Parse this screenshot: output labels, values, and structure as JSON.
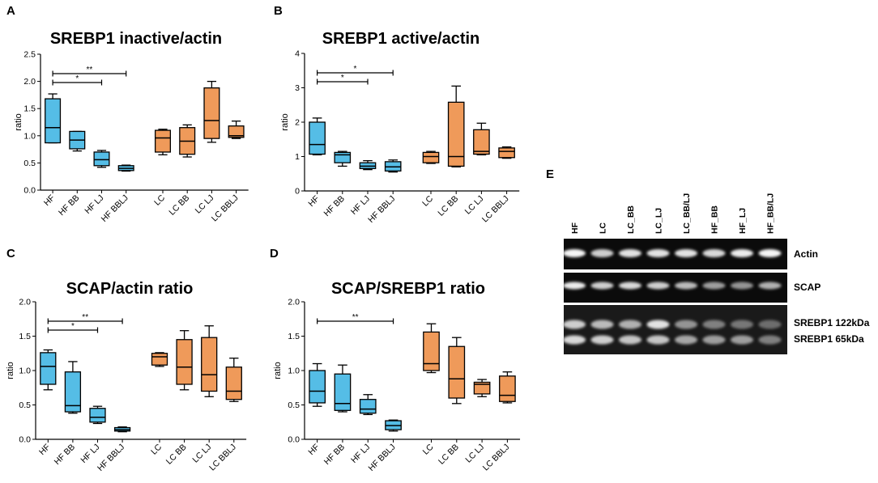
{
  "colors": {
    "hf": "#55bde6",
    "lc": "#ef9a5a",
    "stroke": "#000000",
    "blot_bg": "#0b0b0b"
  },
  "chart_data": [
    {
      "panel": "A",
      "type": "box",
      "title": "SREBP1 inactive/actin",
      "ylabel": "ratio",
      "ylim": [
        0,
        2.5
      ],
      "yticks": [
        "0.0",
        "0.5",
        "1.0",
        "1.5",
        "2.0",
        "2.5"
      ],
      "categories": [
        "HF",
        "HF BB",
        "HF LJ",
        "HF BBLJ",
        "LC",
        "LC BB",
        "LC LJ",
        "LC BBLJ"
      ],
      "groups": [
        "hf",
        "hf",
        "hf",
        "hf",
        "lc",
        "lc",
        "lc",
        "lc"
      ],
      "boxes": [
        [
          0.87,
          0.87,
          1.15,
          1.68,
          1.77
        ],
        [
          0.72,
          0.76,
          0.92,
          1.08,
          1.08
        ],
        [
          0.42,
          0.45,
          0.56,
          0.7,
          0.73
        ],
        [
          0.35,
          0.36,
          0.4,
          0.45,
          0.46
        ],
        [
          0.65,
          0.7,
          0.96,
          1.1,
          1.12
        ],
        [
          0.61,
          0.66,
          0.9,
          1.15,
          1.2
        ],
        [
          0.88,
          0.95,
          1.28,
          1.88,
          2.0
        ],
        [
          0.95,
          0.97,
          1.0,
          1.18,
          1.27
        ]
      ],
      "annotations": [
        {
          "from": 0,
          "to": 2,
          "label": "*"
        },
        {
          "from": 0,
          "to": 3,
          "label": "**"
        }
      ]
    },
    {
      "panel": "B",
      "type": "box",
      "title": "SREBP1 active/actin",
      "ylabel": "ratio",
      "ylim": [
        0,
        4
      ],
      "yticks": [
        "0",
        "1",
        "2",
        "3",
        "4"
      ],
      "categories": [
        "HF",
        "HF BB",
        "HF LJ",
        "HF BBLJ",
        "LC",
        "LC BB",
        "LC LJ",
        "LC BBLJ"
      ],
      "groups": [
        "hf",
        "hf",
        "hf",
        "hf",
        "lc",
        "lc",
        "lc",
        "lc"
      ],
      "boxes": [
        [
          1.05,
          1.07,
          1.35,
          2.0,
          2.12
        ],
        [
          0.72,
          0.82,
          1.05,
          1.12,
          1.15
        ],
        [
          0.62,
          0.65,
          0.72,
          0.82,
          0.88
        ],
        [
          0.55,
          0.58,
          0.7,
          0.85,
          0.9
        ],
        [
          0.8,
          0.82,
          1.0,
          1.12,
          1.15
        ],
        [
          0.7,
          0.72,
          1.0,
          2.58,
          3.05
        ],
        [
          1.05,
          1.07,
          1.15,
          1.78,
          1.97
        ],
        [
          0.95,
          0.97,
          1.15,
          1.25,
          1.28
        ]
      ],
      "annotations": [
        {
          "from": 0,
          "to": 2,
          "label": "*"
        },
        {
          "from": 0,
          "to": 3,
          "label": "*"
        }
      ]
    },
    {
      "panel": "C",
      "type": "box",
      "title": "SCAP/actin ratio",
      "ylabel": "ratio",
      "ylim": [
        0,
        2.0
      ],
      "yticks": [
        "0.0",
        "0.5",
        "1.0",
        "1.5",
        "2.0"
      ],
      "categories": [
        "HF",
        "HF BB",
        "HF LJ",
        "HF BBLJ",
        "LC",
        "LC BB",
        "LC LJ",
        "LC BBLJ"
      ],
      "groups": [
        "hf",
        "hf",
        "hf",
        "hf",
        "lc",
        "lc",
        "lc",
        "lc"
      ],
      "boxes": [
        [
          0.72,
          0.8,
          1.06,
          1.26,
          1.3
        ],
        [
          0.38,
          0.4,
          0.49,
          0.98,
          1.13
        ],
        [
          0.23,
          0.25,
          0.32,
          0.45,
          0.48
        ],
        [
          0.11,
          0.12,
          0.14,
          0.17,
          0.18
        ],
        [
          1.06,
          1.08,
          1.2,
          1.25,
          1.26
        ],
        [
          0.72,
          0.8,
          1.05,
          1.45,
          1.58
        ],
        [
          0.62,
          0.7,
          0.94,
          1.48,
          1.65
        ],
        [
          0.55,
          0.58,
          0.7,
          1.05,
          1.18
        ]
      ],
      "annotations": [
        {
          "from": 0,
          "to": 2,
          "label": "*"
        },
        {
          "from": 0,
          "to": 3,
          "label": "**"
        }
      ]
    },
    {
      "panel": "D",
      "type": "box",
      "title": "SCAP/SREBP1 ratio",
      "ylabel": "ratio",
      "ylim": [
        0,
        2.0
      ],
      "yticks": [
        "0.0",
        "0.5",
        "1.0",
        "1.5",
        "2.0"
      ],
      "categories": [
        "HF",
        "HF BB",
        "HF LJ",
        "HF BBLJ",
        "LC",
        "LC BB",
        "LC LJ",
        "LC BBLJ"
      ],
      "groups": [
        "hf",
        "hf",
        "hf",
        "hf",
        "lc",
        "lc",
        "lc",
        "lc"
      ],
      "boxes": [
        [
          0.48,
          0.53,
          0.7,
          1.0,
          1.1
        ],
        [
          0.4,
          0.42,
          0.52,
          0.95,
          1.08
        ],
        [
          0.36,
          0.38,
          0.44,
          0.58,
          0.65
        ],
        [
          0.12,
          0.14,
          0.2,
          0.27,
          0.28
        ],
        [
          0.97,
          1.0,
          1.1,
          1.56,
          1.68
        ],
        [
          0.52,
          0.6,
          0.88,
          1.35,
          1.48
        ],
        [
          0.62,
          0.66,
          0.8,
          0.83,
          0.87
        ],
        [
          0.53,
          0.55,
          0.64,
          0.92,
          0.98
        ]
      ],
      "annotations": [
        {
          "from": 0,
          "to": 3,
          "label": "**"
        }
      ]
    }
  ],
  "panel_E": {
    "label": "E",
    "lanes": [
      "HF",
      "LC",
      "LC_BB",
      "LC_LJ",
      "LC_BB/LJ",
      "HF_BB",
      "HF_LJ",
      "HF_BB/LJ"
    ],
    "strips": [
      {
        "label": "Actin",
        "bands": [
          {
            "intensity": [
              0.95,
              0.75,
              0.85,
              0.85,
              0.85,
              0.8,
              0.9,
              0.95
            ]
          }
        ]
      },
      {
        "label": "SCAP",
        "bands": [
          {
            "intensity": [
              0.9,
              0.75,
              0.8,
              0.75,
              0.65,
              0.5,
              0.45,
              0.6
            ]
          }
        ]
      },
      {
        "label": "SREBP1 122kDa / SREBP1 65kDa",
        "line1": "SREBP1 122kDa",
        "line2": "SREBP1 65kDa",
        "bands": [
          {
            "intensity": [
              0.75,
              0.65,
              0.6,
              0.85,
              0.45,
              0.35,
              0.3,
              0.25
            ]
          },
          {
            "intensity": [
              0.8,
              0.75,
              0.7,
              0.7,
              0.55,
              0.5,
              0.5,
              0.35
            ]
          }
        ]
      }
    ]
  }
}
